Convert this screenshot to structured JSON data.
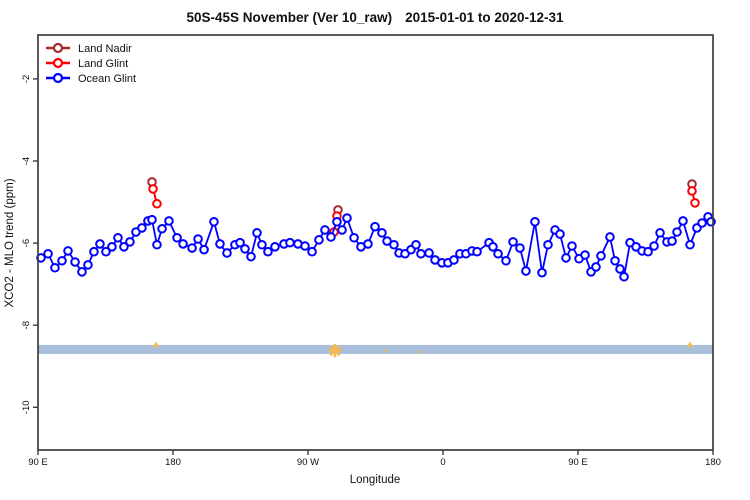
{
  "title_region": "50S-45S November (Ver 10_raw)",
  "title_dates": "2015-01-01 to 2020-12-31",
  "legend": [
    {
      "label": "Land Nadir",
      "color": "#A52A2A"
    },
    {
      "label": "Land Glint",
      "color": "#FF0000"
    },
    {
      "label": "Ocean Glint",
      "color": "#0000FF"
    }
  ],
  "chart_data": {
    "type": "line",
    "title": "50S-45S November (Ver 10_raw)   2015-01-01 to 2020-12-31",
    "xlabel": "Longitude",
    "ylabel": "XCO2 - MLO trend (ppm)",
    "xlim": [
      90,
      540
    ],
    "ylim": [
      -11.04,
      -0.93
    ],
    "x_ticks": {
      "lons": [
        90,
        180,
        270,
        360,
        450,
        540
      ],
      "labels": [
        "90 E",
        "180",
        "90 W",
        "0",
        "90 E",
        "180"
      ]
    },
    "y_ticks": {
      "values": [
        -2,
        -4,
        -6,
        -8,
        -10
      ],
      "labels": [
        "-2",
        "-4",
        "-6",
        "-8",
        "-10"
      ]
    },
    "grid": false,
    "legend_position": "top-left",
    "band": {
      "v_top": -8.48,
      "v_bottom": -8.7,
      "color": "#A9BEDB"
    },
    "band_marks": [
      {
        "lon": 168.7,
        "v": -8.46,
        "type": "triangle"
      },
      {
        "lon": 288.0,
        "v": -8.62,
        "type": "asterisk"
      },
      {
        "lon": 321.3,
        "v": -8.62,
        "type": "dot"
      },
      {
        "lon": 345.3,
        "v": -8.65,
        "type": "dot"
      },
      {
        "lon": 524.7,
        "v": -8.46,
        "type": "triangle"
      }
    ],
    "mark_color": "#F3B954",
    "series": [
      {
        "name": "Land Nadir",
        "color": "#A52A2A",
        "mode": "points",
        "points": [
          [
            166.0,
            -4.51
          ],
          [
            290.0,
            -5.19
          ],
          [
            526.0,
            -4.56
          ]
        ]
      },
      {
        "name": "Land Glint",
        "color": "#FF0000",
        "mode": "segments",
        "segments": [
          [
            [
              166.7,
              -4.68
            ],
            [
              169.3,
              -5.04
            ]
          ],
          [
            [
              289.3,
              -5.34
            ],
            [
              287.3,
              -5.73
            ]
          ],
          [
            [
              526.0,
              -4.73
            ],
            [
              528.0,
              -5.02
            ]
          ]
        ]
      },
      {
        "name": "Ocean Glint",
        "color": "#0000FF",
        "mode": "line",
        "points": [
          [
            92.0,
            -6.36
          ],
          [
            96.7,
            -6.26
          ],
          [
            101.3,
            -6.6
          ],
          [
            106.0,
            -6.43
          ],
          [
            110.0,
            -6.19
          ],
          [
            114.7,
            -6.46
          ],
          [
            119.3,
            -6.7
          ],
          [
            123.3,
            -6.53
          ],
          [
            127.3,
            -6.21
          ],
          [
            131.3,
            -6.02
          ],
          [
            135.3,
            -6.21
          ],
          [
            139.3,
            -6.09
          ],
          [
            143.3,
            -5.87
          ],
          [
            147.3,
            -6.09
          ],
          [
            151.3,
            -5.97
          ],
          [
            155.3,
            -5.73
          ],
          [
            159.3,
            -5.63
          ],
          [
            163.3,
            -5.46
          ],
          [
            166.0,
            -5.43
          ],
          [
            169.3,
            -6.04
          ],
          [
            172.7,
            -5.65
          ],
          [
            177.3,
            -5.46
          ],
          [
            182.7,
            -5.87
          ],
          [
            186.7,
            -6.02
          ],
          [
            192.7,
            -6.12
          ],
          [
            196.7,
            -5.9
          ],
          [
            200.7,
            -6.16
          ],
          [
            207.3,
            -5.48
          ],
          [
            211.3,
            -6.02
          ],
          [
            216.0,
            -6.24
          ],
          [
            221.3,
            -6.04
          ],
          [
            224.7,
            -5.99
          ],
          [
            228.0,
            -6.14
          ],
          [
            232.0,
            -6.33
          ],
          [
            236.0,
            -5.75
          ],
          [
            239.3,
            -6.04
          ],
          [
            243.3,
            -6.21
          ],
          [
            248.0,
            -6.09
          ],
          [
            254.0,
            -6.02
          ],
          [
            258.0,
            -5.99
          ],
          [
            263.3,
            -6.02
          ],
          [
            268.0,
            -6.07
          ],
          [
            272.7,
            -6.21
          ],
          [
            277.3,
            -5.92
          ],
          [
            281.3,
            -5.68
          ],
          [
            285.3,
            -5.85
          ],
          [
            289.3,
            -5.48
          ],
          [
            292.7,
            -5.68
          ],
          [
            296.0,
            -5.39
          ],
          [
            300.7,
            -5.87
          ],
          [
            305.3,
            -6.09
          ],
          [
            310.0,
            -6.02
          ],
          [
            314.7,
            -5.6
          ],
          [
            319.3,
            -5.75
          ],
          [
            322.7,
            -5.95
          ],
          [
            327.3,
            -6.04
          ],
          [
            330.7,
            -6.24
          ],
          [
            334.7,
            -6.26
          ],
          [
            338.7,
            -6.16
          ],
          [
            342.0,
            -6.04
          ],
          [
            345.3,
            -6.26
          ],
          [
            350.7,
            -6.24
          ],
          [
            354.7,
            -6.41
          ],
          [
            359.3,
            -6.48
          ],
          [
            363.3,
            -6.48
          ],
          [
            367.3,
            -6.41
          ],
          [
            371.3,
            -6.26
          ],
          [
            375.3,
            -6.26
          ],
          [
            379.3,
            -6.19
          ],
          [
            382.7,
            -6.21
          ],
          [
            390.7,
            -5.99
          ],
          [
            393.3,
            -6.09
          ],
          [
            396.7,
            -6.26
          ],
          [
            402.0,
            -6.43
          ],
          [
            406.7,
            -5.97
          ],
          [
            411.3,
            -6.12
          ],
          [
            415.3,
            -6.68
          ],
          [
            421.3,
            -5.48
          ],
          [
            426.0,
            -6.72
          ],
          [
            430.0,
            -6.04
          ],
          [
            434.7,
            -5.68
          ],
          [
            438.0,
            -5.78
          ],
          [
            442.0,
            -6.36
          ],
          [
            446.0,
            -6.07
          ],
          [
            450.7,
            -6.38
          ],
          [
            454.7,
            -6.29
          ],
          [
            458.7,
            -6.7
          ],
          [
            462.0,
            -6.58
          ],
          [
            465.3,
            -6.31
          ],
          [
            471.3,
            -5.85
          ],
          [
            474.7,
            -6.43
          ],
          [
            478.0,
            -6.63
          ],
          [
            480.7,
            -6.82
          ],
          [
            484.7,
            -5.99
          ],
          [
            488.7,
            -6.09
          ],
          [
            492.7,
            -6.19
          ],
          [
            496.7,
            -6.21
          ],
          [
            500.7,
            -6.07
          ],
          [
            504.7,
            -5.75
          ],
          [
            509.3,
            -5.97
          ],
          [
            512.7,
            -5.95
          ],
          [
            516.0,
            -5.73
          ],
          [
            520.0,
            -5.46
          ],
          [
            524.7,
            -6.04
          ],
          [
            529.3,
            -5.63
          ],
          [
            532.7,
            -5.51
          ],
          [
            536.7,
            -5.36
          ],
          [
            538.7,
            -5.48
          ]
        ]
      }
    ]
  }
}
